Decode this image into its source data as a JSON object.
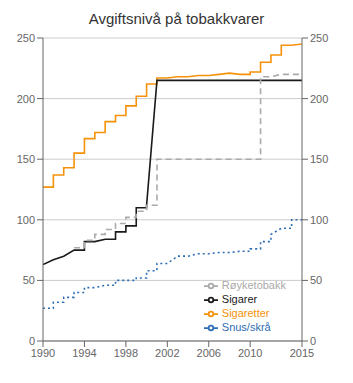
{
  "chart_data": {
    "type": "line",
    "title": "Avgiftsnivå på tobakkvarer",
    "xlim": [
      1990,
      2015
    ],
    "ylim": [
      0,
      250
    ],
    "xticks": [
      1990,
      1994,
      1998,
      2002,
      2006,
      2010,
      2015
    ],
    "yticks": [
      0,
      50,
      100,
      150,
      200,
      250
    ],
    "y2lim": [
      0,
      250
    ],
    "y2ticks": [
      0,
      50,
      100,
      150,
      200,
      250
    ],
    "grid": true,
    "legend": "lower right",
    "series": [
      {
        "name": "Sigaretter",
        "color": "#f5920a",
        "line_style": "solid",
        "x": [
          1990,
          1991,
          1991,
          1992,
          1992,
          1993,
          1993,
          1994,
          1994,
          1995,
          1995,
          1996,
          1996,
          1997,
          1997,
          1998,
          1998,
          1999,
          1999,
          2000,
          2000,
          2001,
          2001,
          2002,
          2003,
          2004,
          2005,
          2006,
          2007,
          2008,
          2009,
          2010,
          2010,
          2011,
          2011,
          2012,
          2012,
          2013,
          2013,
          2014,
          2015
        ],
        "values": [
          127,
          127,
          137,
          137,
          143,
          143,
          155,
          155,
          167,
          167,
          172,
          172,
          181,
          181,
          186,
          186,
          194,
          194,
          202,
          202,
          212,
          212,
          217,
          217,
          218,
          218,
          219,
          219,
          220,
          221,
          220,
          220,
          222,
          222,
          230,
          230,
          236,
          236,
          244,
          244,
          245
        ]
      },
      {
        "name": "Sigarer",
        "color": "#1a1a1a",
        "line_style": "solid",
        "x": [
          1990,
          1991,
          1992,
          1993,
          1994,
          1994,
          1995,
          1996,
          1997,
          1997,
          1998,
          1998,
          1999,
          1999,
          2000,
          2000,
          2001,
          2015
        ],
        "values": [
          63,
          67,
          70,
          75,
          75,
          82,
          82,
          84,
          84,
          90,
          90,
          95,
          95,
          110,
          110,
          112,
          215,
          215
        ]
      },
      {
        "name": "Røyketobakk",
        "color": "#aaaaaa",
        "line_style": "dashed",
        "x": [
          1993,
          1993,
          1994,
          1994,
          1995,
          1995,
          1996,
          1996,
          1997,
          1997,
          1998,
          1998,
          1999,
          1999,
          2000,
          2000,
          2001,
          2001,
          2002,
          2003,
          2004,
          2005,
          2006,
          2007,
          2008,
          2009,
          2010,
          2010,
          2011,
          2011,
          2012,
          2013,
          2014,
          2015
        ],
        "values": [
          77,
          77,
          77,
          83,
          83,
          88,
          88,
          92,
          92,
          97,
          97,
          102,
          102,
          107,
          107,
          112,
          112,
          150,
          150,
          150,
          150,
          150,
          150,
          150,
          150,
          150,
          150,
          150,
          150,
          218,
          218,
          220,
          220,
          220
        ]
      },
      {
        "name": "Snus/skrå",
        "color": "#2e6db4",
        "line_style": "dotted",
        "x": [
          1990,
          1991,
          1991,
          1992,
          1992,
          1993,
          1993,
          1994,
          1994,
          1995,
          1996,
          1997,
          1997,
          1998,
          1999,
          1999,
          2000,
          2000,
          2001,
          2001,
          2002,
          2003,
          2004,
          2005,
          2006,
          2007,
          2008,
          2009,
          2010,
          2010,
          2011,
          2011,
          2012,
          2012,
          2013,
          2014,
          2014,
          2015
        ],
        "values": [
          27,
          27,
          32,
          32,
          36,
          36,
          40,
          40,
          44,
          44,
          46,
          46,
          50,
          50,
          50,
          52,
          52,
          58,
          58,
          64,
          64,
          70,
          70,
          72,
          72,
          73,
          73,
          74,
          74,
          76,
          76,
          82,
          82,
          88,
          93,
          93,
          100,
          100
        ]
      }
    ]
  }
}
